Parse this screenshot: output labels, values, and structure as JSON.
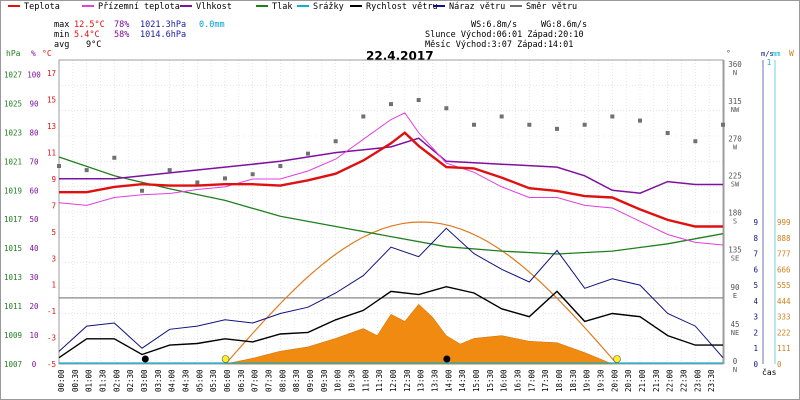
{
  "legend": [
    {
      "label": "Teplota",
      "color": "#e01010"
    },
    {
      "label": "Přízemní teplota",
      "color": "#e040e0"
    },
    {
      "label": "Vlhkost",
      "color": "#8010a0"
    },
    {
      "label": "Tlak",
      "color": "#208020"
    },
    {
      "label": "Srážky",
      "color": "#10b0d0"
    },
    {
      "label": "Rychlost větru",
      "color": "#000000"
    },
    {
      "label": "Náraz větru",
      "color": "#101080"
    },
    {
      "label": "Směr větru",
      "color": "#707070"
    }
  ],
  "stats": {
    "max_label": "max",
    "max_temp": "12.5°C",
    "max_hum": "78%",
    "max_press": "1021.3hPa",
    "max_rain": "0.0mm",
    "min_label": "min",
    "min_temp": "5.4°C",
    "min_hum": "58%",
    "min_press": "1014.6hPa",
    "avg_label": "avg",
    "avg_temp": "9°C",
    "ws": "WS:6.8m/s",
    "wg": "WG:8.6m/s",
    "sun": "Slunce Východ:06:01  Západ:20:10",
    "moon": "Měsíc  Východ:3:07   Západ:14:01"
  },
  "chart_data": {
    "type": "line",
    "title": "22.4.2017",
    "x_unit_label": "čas",
    "x_ticks": [
      "00:00",
      "00:30",
      "01:00",
      "01:30",
      "02:00",
      "02:30",
      "03:00",
      "03:30",
      "04:00",
      "04:30",
      "05:00",
      "05:30",
      "06:00",
      "06:30",
      "07:00",
      "07:30",
      "08:00",
      "08:30",
      "09:00",
      "09:30",
      "10:00",
      "10:30",
      "11:00",
      "11:30",
      "12:00",
      "12:30",
      "13:00",
      "13:30",
      "14:00",
      "14:30",
      "15:00",
      "15:30",
      "16:00",
      "16:30",
      "17:00",
      "17:30",
      "18:00",
      "18:30",
      "19:00",
      "19:30",
      "20:00",
      "20:30",
      "21:00",
      "21:30",
      "22:00",
      "22:30",
      "23:00",
      "23:30"
    ],
    "axes": {
      "hPa": {
        "unit": "hPa",
        "ticks": [
          "1027",
          "1025",
          "1023",
          "1021",
          "1019",
          "1017",
          "1015",
          "1013",
          "1011",
          "1009",
          "1007"
        ],
        "range": [
          1007,
          1028
        ]
      },
      "percent": {
        "unit": "%",
        "ticks": [
          "100",
          "90",
          "80",
          "70",
          "60",
          "50",
          "40",
          "30",
          "20",
          "10",
          "0"
        ],
        "range": [
          0,
          105
        ]
      },
      "temp": {
        "unit": "°C",
        "ticks": [
          "17",
          "15",
          "13",
          "11",
          "9",
          "7",
          "5",
          "3",
          "1",
          "-1",
          "-3",
          "-5"
        ],
        "range": [
          -5,
          18
        ]
      },
      "dir": {
        "unit": "°",
        "ticks": [
          "360 N",
          "315 NW",
          "270 W",
          "225 SW",
          "180 S",
          "135 SE",
          "90 E",
          "45 NE",
          "0 N"
        ]
      },
      "ms": {
        "unit": "m/s",
        "ticks": [
          "9",
          "8",
          "7",
          "6",
          "5",
          "4",
          "3",
          "2",
          "1",
          "0"
        ],
        "range": [
          0,
          9
        ]
      },
      "mm": {
        "unit": "mm",
        "ticks": [
          "1"
        ],
        "range": [
          0,
          1
        ]
      },
      "W": {
        "unit": "W",
        "ticks": [
          "999",
          "888",
          "777",
          "666",
          "555",
          "444",
          "333",
          "222",
          "111",
          "0"
        ],
        "range": [
          0,
          999
        ]
      }
    },
    "series": [
      {
        "name": "Teplota",
        "unit": "°C",
        "x": [
          0,
          1,
          2,
          3,
          4,
          5,
          6,
          7,
          8,
          9,
          10,
          11,
          12,
          12.5,
          13,
          14,
          15,
          16,
          17,
          18,
          19,
          20,
          21,
          22,
          23,
          24
        ],
        "values": [
          8.0,
          8.0,
          8.4,
          8.6,
          8.5,
          8.5,
          8.6,
          8.6,
          8.5,
          8.9,
          9.4,
          10.4,
          11.7,
          12.5,
          11.5,
          9.9,
          9.8,
          9.1,
          8.3,
          8.1,
          7.7,
          7.6,
          6.7,
          5.9,
          5.4,
          5.4
        ]
      },
      {
        "name": "Přízemní teplota",
        "unit": "°C",
        "x": [
          0,
          1,
          2,
          3,
          4,
          5,
          6,
          7,
          8,
          9,
          10,
          11,
          12,
          12.5,
          13,
          14,
          15,
          16,
          17,
          18,
          19,
          20,
          21,
          22,
          23,
          24
        ],
        "values": [
          7.2,
          7.0,
          7.6,
          7.8,
          7.9,
          8.2,
          8.4,
          9.0,
          9.0,
          9.6,
          10.5,
          12.0,
          13.5,
          14.0,
          12.5,
          10.2,
          9.5,
          8.4,
          7.6,
          7.6,
          7.0,
          6.8,
          5.8,
          4.8,
          4.2,
          4.0
        ]
      },
      {
        "name": "Vlhkost",
        "unit": "%",
        "x": [
          0,
          2,
          4,
          6,
          8,
          10,
          12,
          13,
          14,
          16,
          18,
          19,
          20,
          21,
          22,
          23,
          24
        ],
        "values": [
          64,
          64,
          66,
          68,
          70,
          73,
          75,
          78,
          70,
          69,
          68,
          65,
          60,
          59,
          63,
          62,
          62
        ]
      },
      {
        "name": "Tlak",
        "unit": "hPa",
        "x": [
          0,
          2,
          4,
          6,
          8,
          10,
          12,
          14,
          16,
          18,
          20,
          22,
          24
        ],
        "values": [
          1021.3,
          1020.0,
          1019.1,
          1018.3,
          1017.2,
          1016.5,
          1015.8,
          1015.1,
          1014.8,
          1014.6,
          1014.8,
          1015.3,
          1016.0
        ]
      },
      {
        "name": "Srážky",
        "unit": "mm",
        "x": [
          0,
          24
        ],
        "values": [
          0,
          0
        ]
      },
      {
        "name": "Rychlost větru",
        "unit": "m/s",
        "x": [
          0,
          1,
          2,
          3,
          4,
          5,
          6,
          7,
          8,
          9,
          10,
          11,
          12,
          13,
          14,
          15,
          16,
          17,
          18,
          19,
          20,
          21,
          22,
          23,
          24
        ],
        "values": [
          0.4,
          1.6,
          1.6,
          0.6,
          1.2,
          1.3,
          1.6,
          1.4,
          1.9,
          2.0,
          2.8,
          3.4,
          4.6,
          4.4,
          4.9,
          4.5,
          3.5,
          3.0,
          4.6,
          2.7,
          3.2,
          3.0,
          1.8,
          1.2,
          1.2
        ]
      },
      {
        "name": "Náraz větru",
        "unit": "m/s",
        "x": [
          0,
          1,
          2,
          3,
          4,
          5,
          6,
          7,
          8,
          9,
          10,
          11,
          12,
          13,
          14,
          15,
          16,
          17,
          18,
          19,
          20,
          21,
          22,
          23,
          24
        ],
        "values": [
          0.8,
          2.4,
          2.6,
          1.0,
          2.2,
          2.4,
          2.8,
          2.6,
          3.2,
          3.6,
          4.5,
          5.6,
          7.4,
          6.8,
          8.6,
          7.0,
          6.0,
          5.2,
          7.2,
          4.8,
          5.4,
          5.0,
          3.2,
          2.4,
          0.4
        ]
      },
      {
        "name": "Směr větru",
        "unit": "°",
        "type": "scatter",
        "x": [
          0,
          1,
          2,
          3,
          4,
          5,
          6,
          7,
          8,
          9,
          10,
          11,
          12,
          13,
          14,
          15,
          16,
          17,
          18,
          19,
          20,
          21,
          22,
          23,
          24
        ],
        "values": [
          240,
          235,
          250,
          210,
          235,
          220,
          225,
          230,
          240,
          255,
          270,
          300,
          315,
          320,
          310,
          290,
          300,
          290,
          285,
          290,
          300,
          295,
          280,
          270,
          290
        ]
      },
      {
        "name": "Solar radiation",
        "unit": "W",
        "type": "area",
        "x": [
          6,
          7,
          8,
          9,
          10,
          11,
          11.5,
          12,
          12.5,
          13,
          13.5,
          14,
          14.5,
          15,
          16,
          17,
          18,
          19,
          19.5,
          20
        ],
        "values": [
          0,
          40,
          90,
          120,
          180,
          250,
          200,
          350,
          300,
          420,
          330,
          200,
          140,
          180,
          200,
          160,
          150,
          80,
          40,
          0
        ]
      }
    ],
    "sun_curve": {
      "rise_hour": 6.02,
      "set_hour": 20.17,
      "peak_W": 999
    },
    "markers": {
      "sunrise": 6.02,
      "sunset": 20.17,
      "moonrise": 3.12,
      "moonset": 14.02
    }
  }
}
